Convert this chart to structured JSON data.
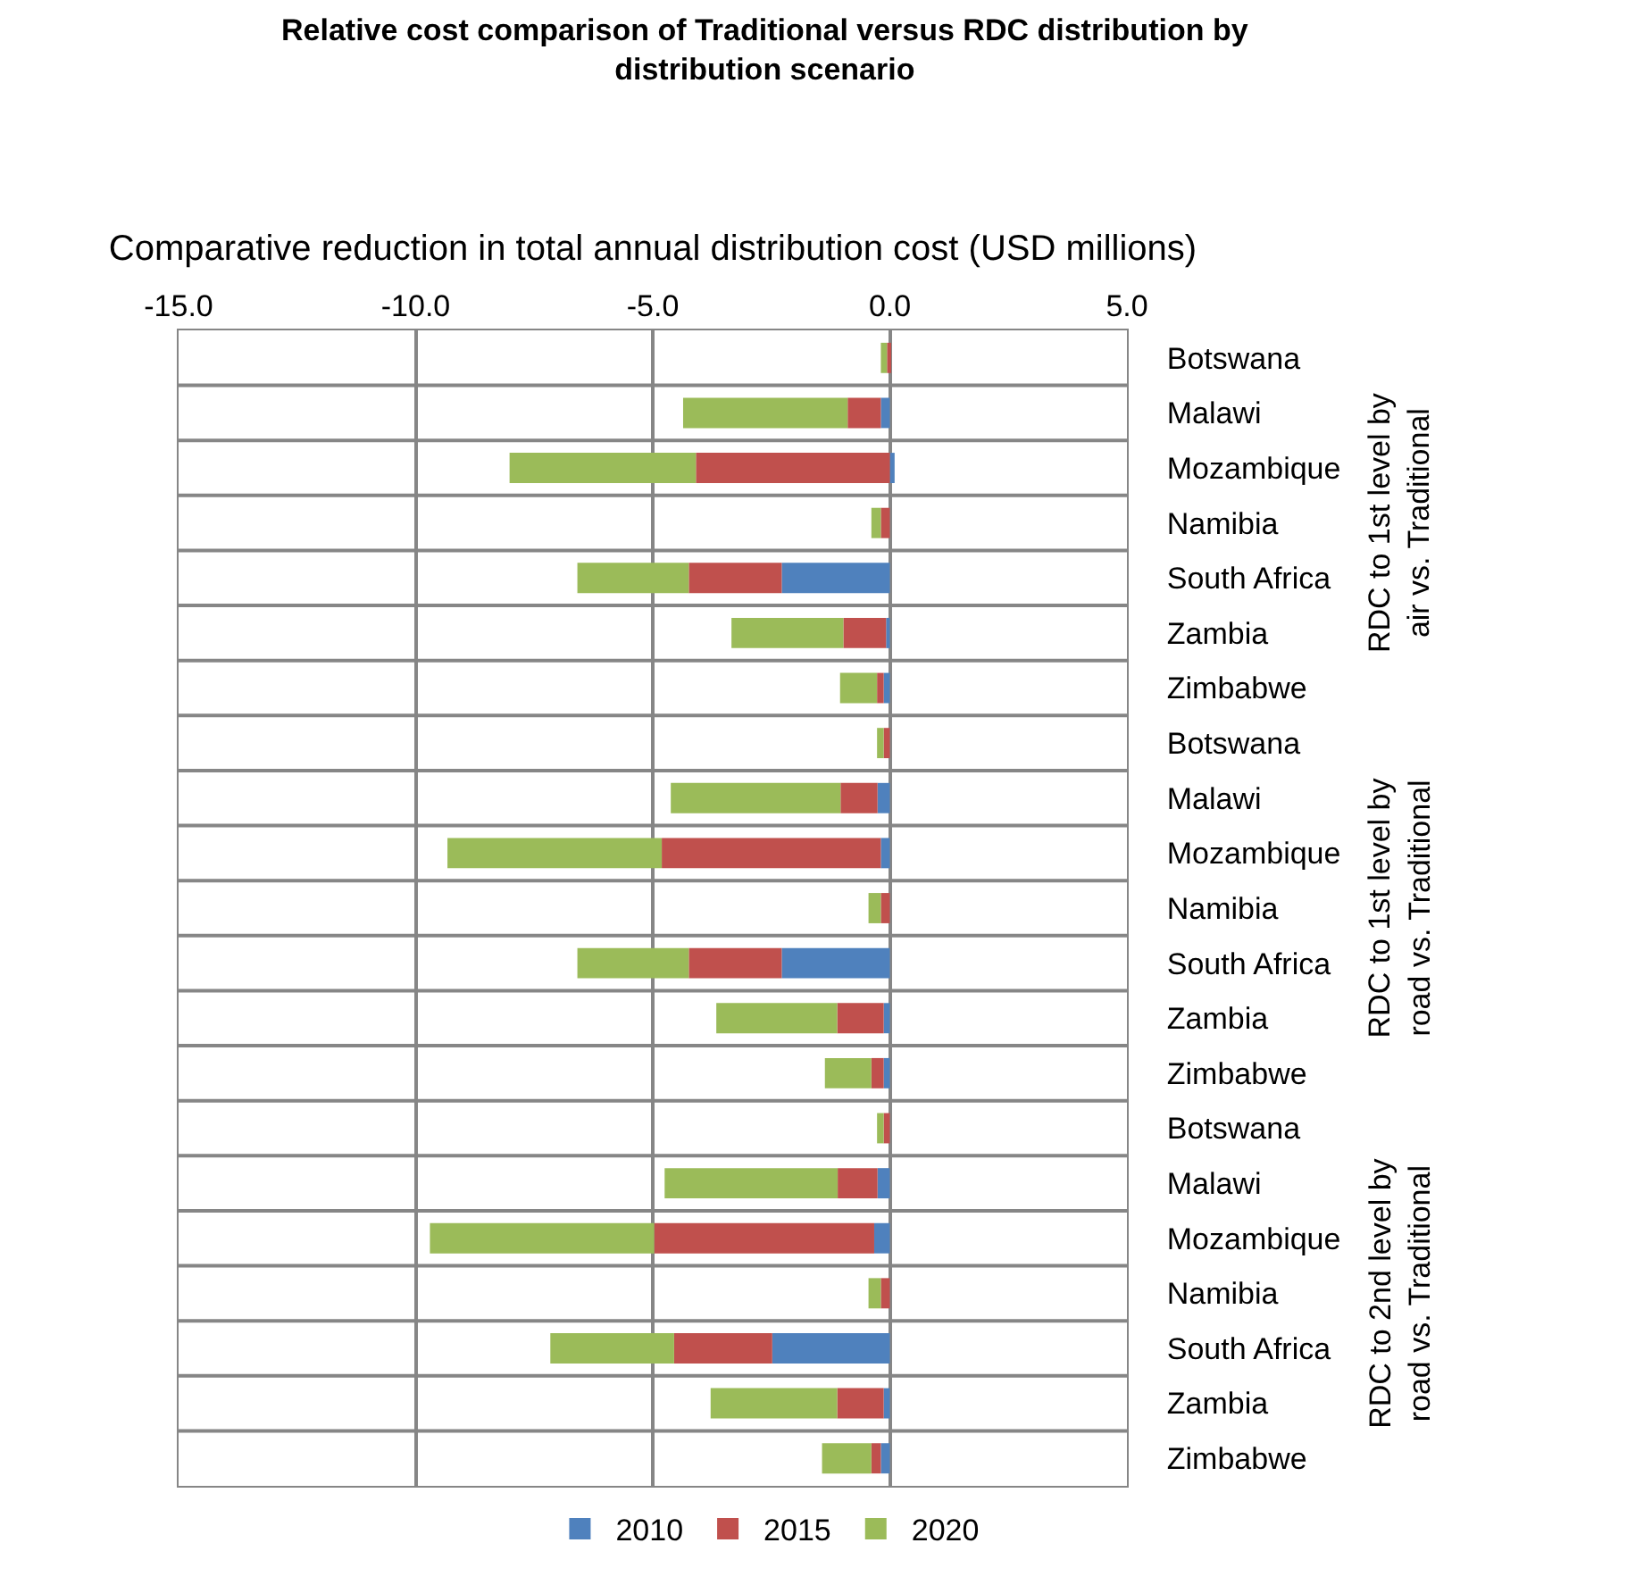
{
  "chart_data": {
    "type": "bar",
    "orientation": "horizontal",
    "stacked": true,
    "title": "Relative cost comparison of Traditional versus RDC distribution by distribution scenario",
    "xlabel": "Comparative reduction in total annual distribution cost (USD millions)",
    "categories": [
      "Botswana",
      "Malawi",
      "Mozambique",
      "Namibia",
      "South Africa",
      "Zambia",
      "Zimbabwe",
      "Botswana",
      "Malawi",
      "Mozambique",
      "Namibia",
      "South Africa",
      "Zambia",
      "Zimbabwe",
      "Botswana",
      "Malawi",
      "Mozambique",
      "Namibia",
      "South Africa",
      "Zambia",
      "Zimbabwe"
    ],
    "annotations": [
      "RDC to 1st level by air vs. Traditional",
      "RDC to 1st level by road vs. Traditional",
      "RDC to 2nd level by road vs. Traditional"
    ],
    "series": [
      {
        "name": "2010",
        "color": "#4f81bd",
        "values": [
          null,
          -0.19,
          0.1,
          null,
          -2.28,
          -0.08,
          -0.13,
          null,
          -0.26,
          -0.19,
          null,
          -2.28,
          -0.13,
          -0.13,
          null,
          -0.26,
          -0.33,
          null,
          -2.48,
          -0.13,
          -0.19
        ]
      },
      {
        "name": "2015",
        "color": "#c0504d",
        "values": [
          -0.06,
          -0.7,
          -4.09,
          -0.19,
          -1.96,
          -0.9,
          -0.14,
          -0.13,
          -0.78,
          -4.62,
          -0.19,
          -1.96,
          -0.98,
          -0.26,
          -0.13,
          -0.84,
          -4.64,
          -0.19,
          -2.07,
          -0.98,
          -0.2
        ]
      },
      {
        "name": "2020",
        "color": "#9bbb59",
        "values": [
          -0.13,
          -3.47,
          -3.93,
          -0.2,
          -2.35,
          -2.36,
          -0.78,
          -0.14,
          -3.58,
          -4.52,
          -0.26,
          -2.35,
          -2.55,
          -0.98,
          -0.14,
          -3.65,
          -4.73,
          -0.26,
          -2.61,
          -2.67,
          -1.04
        ]
      }
    ],
    "xlim": [
      -15,
      5
    ],
    "xticks": [
      {
        "value": -15,
        "label": "-15.0"
      },
      {
        "value": -10,
        "label": "-10.0"
      },
      {
        "value": -5,
        "label": "-5.0"
      },
      {
        "value": 0,
        "label": "0.0"
      },
      {
        "value": 5,
        "label": "5.0"
      }
    ],
    "grid": true,
    "legend": "bottom"
  }
}
